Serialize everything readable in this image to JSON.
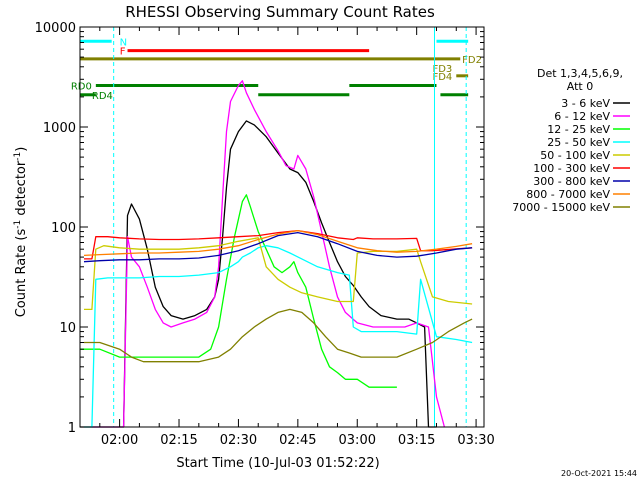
{
  "chart_data": {
    "type": "line",
    "title": "RHESSI Observing Summary Count Rates",
    "xlabel": "Start Time (10-Jul-03 01:52:22)",
    "ylabel_main": "Count Rate (s",
    "ylabel_sup": "-1",
    "ylabel_mid": " detector",
    "ylabel_end": ")",
    "y_scale": "log",
    "ylim": [
      1,
      10000
    ],
    "x_ticks": [
      "02:00",
      "02:15",
      "02:30",
      "02:45",
      "03:00",
      "03:15",
      "03:30"
    ],
    "x_tick_minutes": [
      0,
      15,
      30,
      45,
      60,
      75,
      90
    ],
    "x_range_minutes": [
      -10,
      92
    ],
    "y_ticks": [
      "1",
      "10",
      "100",
      "1000",
      "10000"
    ],
    "y_tick_values": [
      1,
      10,
      100,
      1000,
      10000
    ],
    "legend_position": "right",
    "legend_header": [
      "Det 1,3,4,5,6,9,",
      "Att 0"
    ],
    "series": [
      {
        "name": "3 - 6 keV",
        "color": "#000000",
        "points": [
          [
            -10,
            1
          ],
          [
            -7,
            1
          ],
          [
            1,
            1
          ],
          [
            2,
            130
          ],
          [
            3,
            170
          ],
          [
            5,
            120
          ],
          [
            7,
            60
          ],
          [
            9,
            25
          ],
          [
            11,
            16
          ],
          [
            13,
            13
          ],
          [
            16,
            12
          ],
          [
            19,
            13
          ],
          [
            22,
            15
          ],
          [
            24,
            20
          ],
          [
            25,
            30
          ],
          [
            26,
            80
          ],
          [
            27,
            250
          ],
          [
            28,
            600
          ],
          [
            30,
            900
          ],
          [
            32,
            1150
          ],
          [
            34,
            1050
          ],
          [
            37,
            800
          ],
          [
            40,
            550
          ],
          [
            43,
            380
          ],
          [
            45,
            350
          ],
          [
            47,
            280
          ],
          [
            49,
            180
          ],
          [
            51,
            110
          ],
          [
            53,
            70
          ],
          [
            55,
            45
          ],
          [
            57,
            32
          ],
          [
            59,
            26
          ],
          [
            61,
            20
          ],
          [
            63,
            16
          ],
          [
            66,
            13
          ],
          [
            70,
            12
          ],
          [
            73,
            12
          ],
          [
            75,
            11
          ],
          [
            77,
            10
          ],
          [
            78,
            1
          ],
          [
            80,
            1
          ]
        ]
      },
      {
        "name": "6 - 12 keV",
        "color": "#ff00ff",
        "points": [
          [
            -7,
            1
          ],
          [
            -5,
            1
          ],
          [
            1,
            1
          ],
          [
            2,
            80
          ],
          [
            3,
            50
          ],
          [
            5,
            40
          ],
          [
            7,
            25
          ],
          [
            9,
            15
          ],
          [
            11,
            11
          ],
          [
            13,
            10
          ],
          [
            16,
            11
          ],
          [
            19,
            12
          ],
          [
            22,
            14
          ],
          [
            24,
            20
          ],
          [
            25,
            40
          ],
          [
            26,
            200
          ],
          [
            27,
            900
          ],
          [
            28,
            1800
          ],
          [
            30,
            2600
          ],
          [
            31,
            2900
          ],
          [
            32,
            2200
          ],
          [
            34,
            1500
          ],
          [
            37,
            900
          ],
          [
            40,
            580
          ],
          [
            42,
            410
          ],
          [
            44,
            380
          ],
          [
            45,
            520
          ],
          [
            47,
            380
          ],
          [
            49,
            200
          ],
          [
            51,
            90
          ],
          [
            53,
            40
          ],
          [
            55,
            20
          ],
          [
            57,
            14
          ],
          [
            60,
            11
          ],
          [
            64,
            10
          ],
          [
            68,
            10
          ],
          [
            72,
            10
          ],
          [
            75,
            11
          ],
          [
            78,
            10
          ],
          [
            80,
            2
          ],
          [
            82,
            1
          ]
        ]
      },
      {
        "name": "12 - 25 keV",
        "color": "#00ff00",
        "points": [
          [
            -10,
            6
          ],
          [
            -5,
            6
          ],
          [
            0,
            5
          ],
          [
            5,
            5
          ],
          [
            10,
            5
          ],
          [
            15,
            5
          ],
          [
            20,
            5
          ],
          [
            23,
            6
          ],
          [
            25,
            10
          ],
          [
            27,
            30
          ],
          [
            29,
            80
          ],
          [
            31,
            180
          ],
          [
            32,
            210
          ],
          [
            33,
            160
          ],
          [
            35,
            90
          ],
          [
            37,
            60
          ],
          [
            39,
            40
          ],
          [
            41,
            35
          ],
          [
            43,
            40
          ],
          [
            44,
            45
          ],
          [
            45,
            35
          ],
          [
            47,
            25
          ],
          [
            49,
            12
          ],
          [
            51,
            6
          ],
          [
            53,
            4
          ],
          [
            55,
            3.5
          ],
          [
            57,
            3
          ],
          [
            60,
            3
          ],
          [
            63,
            2.5
          ],
          [
            66,
            2.5
          ],
          [
            70,
            2.5
          ]
        ]
      },
      {
        "name": "25 - 50 keV",
        "color": "#00ffff",
        "points": [
          [
            -9,
            1
          ],
          [
            -7,
            1
          ],
          [
            -6,
            30
          ],
          [
            -3,
            31
          ],
          [
            0,
            31
          ],
          [
            5,
            31
          ],
          [
            10,
            32
          ],
          [
            15,
            32
          ],
          [
            20,
            33
          ],
          [
            25,
            35
          ],
          [
            28,
            40
          ],
          [
            30,
            45
          ],
          [
            31,
            50
          ],
          [
            33,
            55
          ],
          [
            35,
            62
          ],
          [
            37,
            65
          ],
          [
            40,
            62
          ],
          [
            43,
            55
          ],
          [
            46,
            48
          ],
          [
            50,
            40
          ],
          [
            55,
            35
          ],
          [
            58,
            33
          ],
          [
            59,
            10
          ],
          [
            61,
            9
          ],
          [
            65,
            9
          ],
          [
            70,
            9
          ],
          [
            75,
            8.5
          ],
          [
            76,
            30
          ],
          [
            80,
            8
          ],
          [
            85,
            7.5
          ],
          [
            89,
            7
          ]
        ]
      },
      {
        "name": "50 - 100 keV",
        "color": "#cccc00",
        "points": [
          [
            -9,
            15
          ],
          [
            -7,
            15
          ],
          [
            -6,
            60
          ],
          [
            -4,
            65
          ],
          [
            0,
            62
          ],
          [
            5,
            60
          ],
          [
            10,
            60
          ],
          [
            15,
            60
          ],
          [
            20,
            62
          ],
          [
            25,
            65
          ],
          [
            30,
            72
          ],
          [
            35,
            78
          ],
          [
            37,
            40
          ],
          [
            40,
            30
          ],
          [
            43,
            25
          ],
          [
            46,
            22
          ],
          [
            50,
            20
          ],
          [
            55,
            18
          ],
          [
            59,
            18
          ],
          [
            60,
            55
          ],
          [
            64,
            57
          ],
          [
            70,
            57
          ],
          [
            75,
            60
          ],
          [
            76,
            45
          ],
          [
            79,
            20
          ],
          [
            83,
            18
          ],
          [
            89,
            17
          ]
        ]
      },
      {
        "name": "100 - 300 keV",
        "color": "#ff0000",
        "points": [
          [
            -9,
            48
          ],
          [
            -7,
            48
          ],
          [
            -6,
            80
          ],
          [
            -3,
            80
          ],
          [
            0,
            78
          ],
          [
            5,
            76
          ],
          [
            10,
            75
          ],
          [
            15,
            75
          ],
          [
            20,
            76
          ],
          [
            25,
            78
          ],
          [
            30,
            80
          ],
          [
            35,
            82
          ],
          [
            40,
            88
          ],
          [
            45,
            92
          ],
          [
            50,
            86
          ],
          [
            55,
            78
          ],
          [
            59,
            75
          ],
          [
            60,
            78
          ],
          [
            64,
            76
          ],
          [
            70,
            76
          ],
          [
            75,
            77
          ],
          [
            76,
            58
          ],
          [
            79,
            58
          ],
          [
            84,
            60
          ],
          [
            89,
            62
          ]
        ]
      },
      {
        "name": "300 - 800 keV",
        "color": "#0000aa",
        "points": [
          [
            -9,
            45
          ],
          [
            -5,
            46
          ],
          [
            0,
            47
          ],
          [
            5,
            47
          ],
          [
            10,
            48
          ],
          [
            15,
            48
          ],
          [
            20,
            49
          ],
          [
            25,
            52
          ],
          [
            30,
            58
          ],
          [
            35,
            68
          ],
          [
            40,
            82
          ],
          [
            45,
            88
          ],
          [
            50,
            80
          ],
          [
            55,
            68
          ],
          [
            60,
            57
          ],
          [
            65,
            52
          ],
          [
            70,
            50
          ],
          [
            75,
            51
          ],
          [
            80,
            55
          ],
          [
            85,
            60
          ],
          [
            89,
            62
          ]
        ]
      },
      {
        "name": "800 - 7000 keV",
        "color": "#ff8000",
        "points": [
          [
            -9,
            52
          ],
          [
            -5,
            53
          ],
          [
            0,
            54
          ],
          [
            5,
            55
          ],
          [
            10,
            55
          ],
          [
            15,
            56
          ],
          [
            20,
            57
          ],
          [
            25,
            60
          ],
          [
            30,
            65
          ],
          [
            35,
            75
          ],
          [
            40,
            85
          ],
          [
            45,
            92
          ],
          [
            50,
            84
          ],
          [
            55,
            72
          ],
          [
            60,
            62
          ],
          [
            65,
            58
          ],
          [
            70,
            56
          ],
          [
            75,
            57
          ],
          [
            80,
            60
          ],
          [
            85,
            64
          ],
          [
            89,
            68
          ]
        ]
      },
      {
        "name": "7000 - 15000 keV",
        "color": "#808000",
        "points": [
          [
            -9,
            7
          ],
          [
            -5,
            7
          ],
          [
            0,
            6
          ],
          [
            3,
            5
          ],
          [
            6,
            4.5
          ],
          [
            10,
            4.5
          ],
          [
            15,
            4.5
          ],
          [
            20,
            4.5
          ],
          [
            25,
            5
          ],
          [
            28,
            6
          ],
          [
            31,
            8
          ],
          [
            34,
            10
          ],
          [
            37,
            12
          ],
          [
            40,
            14
          ],
          [
            43,
            15
          ],
          [
            46,
            14
          ],
          [
            49,
            11
          ],
          [
            52,
            8
          ],
          [
            55,
            6
          ],
          [
            58,
            5.5
          ],
          [
            61,
            5
          ],
          [
            65,
            5
          ],
          [
            70,
            5
          ],
          [
            75,
            6
          ],
          [
            79,
            7
          ],
          [
            83,
            9
          ],
          [
            87,
            11
          ],
          [
            89,
            12
          ]
        ]
      }
    ],
    "flag_bars": [
      {
        "label": "N",
        "color": "#00ffff",
        "segments": [
          [
            -10,
            -2
          ],
          [
            80,
            88
          ]
        ],
        "y_value": 7200
      },
      {
        "label": "F",
        "color": "#ff0000",
        "segments": [
          [
            2,
            63
          ]
        ],
        "y_value": 5800
      },
      {
        "label": "FD2",
        "color": "#808000",
        "segments": [
          [
            -10,
            86
          ]
        ],
        "y_value": 4800
      },
      {
        "label": "FD3",
        "color": "#808000",
        "segments": [],
        "y_value": 3900
      },
      {
        "label": "FD4",
        "color": "#808000",
        "segments": [
          [
            85,
            88
          ]
        ],
        "y_value": 3250
      },
      {
        "label": "RD0",
        "color": "#008000",
        "segments": [
          [
            -6,
            35
          ],
          [
            58,
            80
          ]
        ],
        "y_value": 2600
      },
      {
        "label": "RD4",
        "color": "#008000",
        "segments": [
          [
            -10,
            -6
          ],
          [
            35,
            58
          ],
          [
            81,
            88
          ]
        ],
        "y_value": 2100
      }
    ],
    "vlines": [
      {
        "minute": -10,
        "color": "#00ffff",
        "style": "solid"
      },
      {
        "minute": -1.5,
        "color": "#00ffff",
        "style": "dashed"
      },
      {
        "minute": 79.5,
        "color": "#00ffff",
        "style": "solid"
      },
      {
        "minute": 87.5,
        "color": "#00ffff",
        "style": "dashed"
      }
    ]
  },
  "footer": {
    "date_stamp": "20-Oct-2021 15:44"
  }
}
